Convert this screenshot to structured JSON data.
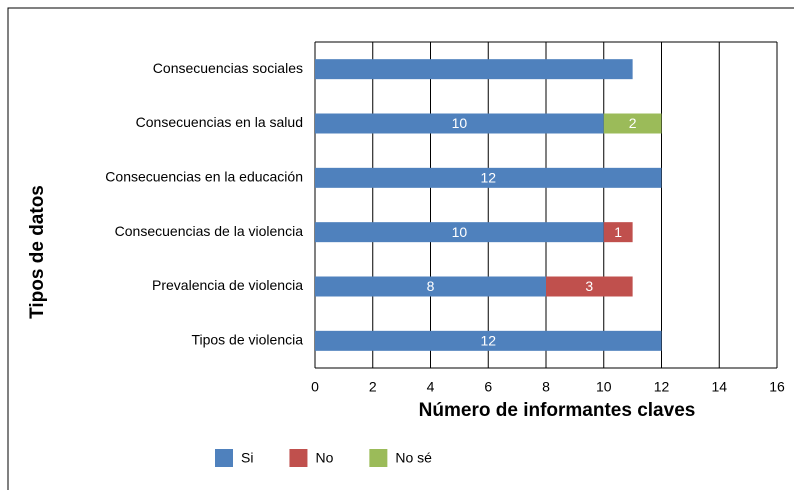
{
  "chart_data": {
    "type": "bar",
    "orientation": "horizontal",
    "stacked": true,
    "xlabel": "Número de informantes claves",
    "ylabel": "Tipos de datos",
    "categories": [
      "Consecuencias sociales",
      "Consecuencias en la salud",
      "Consecuencias en la educación",
      "Consecuencias de la violencia",
      "Prevalencia de violencia",
      "Tipos de violencia"
    ],
    "series": [
      {
        "name": "Si",
        "color": "#4f81bd",
        "values": [
          11,
          10,
          12,
          10,
          8,
          12
        ],
        "value_labels": [
          null,
          "10",
          "12",
          "10",
          "8",
          "12"
        ]
      },
      {
        "name": "No",
        "color": "#c0504d",
        "values": [
          null,
          null,
          null,
          1,
          3,
          null
        ],
        "value_labels": [
          null,
          null,
          null,
          "1",
          "3",
          null
        ]
      },
      {
        "name": "No sé",
        "color": "#9bbb59",
        "values": [
          null,
          2,
          null,
          null,
          null,
          null
        ],
        "value_labels": [
          null,
          "2",
          null,
          null,
          null,
          null
        ]
      }
    ],
    "xlim": [
      0,
      16
    ],
    "xticks": [
      0,
      2,
      4,
      6,
      8,
      10,
      12,
      14,
      16
    ],
    "grid": true,
    "legend": "bottom"
  }
}
